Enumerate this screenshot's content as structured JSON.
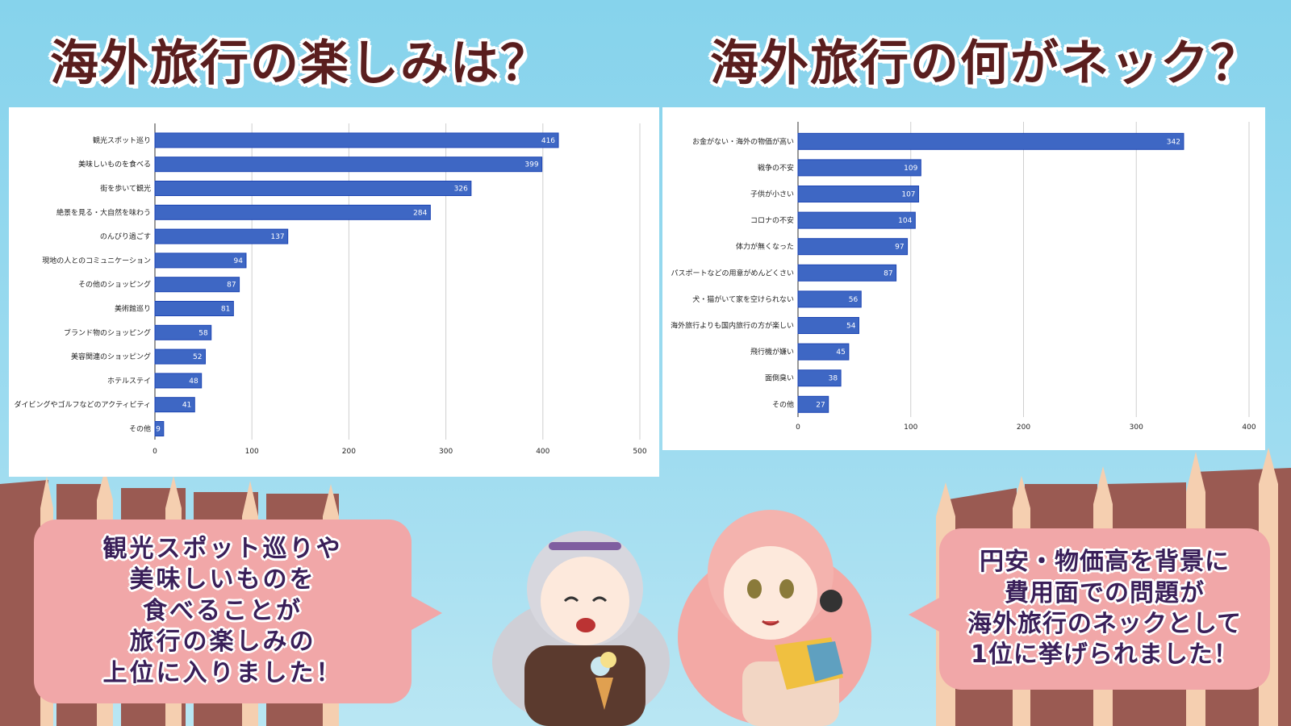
{
  "titles": {
    "left": "海外旅行の楽しみは？",
    "right": "海外旅行の何がネック？"
  },
  "bubbles": {
    "left": "観光スポット巡りや\n美味しいものを\n食べることが\n旅行の楽しみの\n上位に入りました！",
    "right": "円安・物価高を背景に\n費用面での問題が\n海外旅行のネックとして\n1位に挙げられました！"
  },
  "colors": {
    "bar_fill": "#3e67c4",
    "title_text": "#5a1e1e",
    "bubble_fill": "#f1a7a8",
    "bubble_text": "#3a1f59",
    "sky": "#86d3ec"
  },
  "chart_data": [
    {
      "type": "bar",
      "orientation": "horizontal",
      "categories": [
        "観光スポット巡り",
        "美味しいものを食べる",
        "街を歩いて観光",
        "絶景を見る・大自然を味わう",
        "のんびり過ごす",
        "現地の人とのコミュニケーション",
        "その他のショッピング",
        "美術館巡り",
        "ブランド物のショッピング",
        "美容関連のショッピング",
        "ホテルステイ",
        "ダイビングやゴルフなどのアクティビティ",
        "その他"
      ],
      "values": [
        416,
        399,
        326,
        284,
        137,
        94,
        87,
        81,
        58,
        52,
        48,
        41,
        9
      ],
      "xlim": [
        0,
        500
      ],
      "xticks": [
        "0",
        "100",
        "200",
        "300",
        "400",
        "500"
      ],
      "grid": true,
      "data_labels": true
    },
    {
      "type": "bar",
      "orientation": "horizontal",
      "categories": [
        "お金がない・海外の物価が高い",
        "戦争の不安",
        "子供が小さい",
        "コロナの不安",
        "体力が無くなった",
        "パスポートなどの用意がめんどくさい",
        "犬・猫がいて家を空けられない",
        "海外旅行よりも国内旅行の方が楽しい",
        "飛行機が嫌い",
        "面倒臭い",
        "その他"
      ],
      "values": [
        342,
        109,
        107,
        104,
        97,
        87,
        56,
        54,
        45,
        38,
        27
      ],
      "xlim": [
        0,
        400
      ],
      "xticks": [
        "0",
        "100",
        "200",
        "300",
        "400"
      ],
      "grid": true,
      "data_labels": true
    }
  ]
}
